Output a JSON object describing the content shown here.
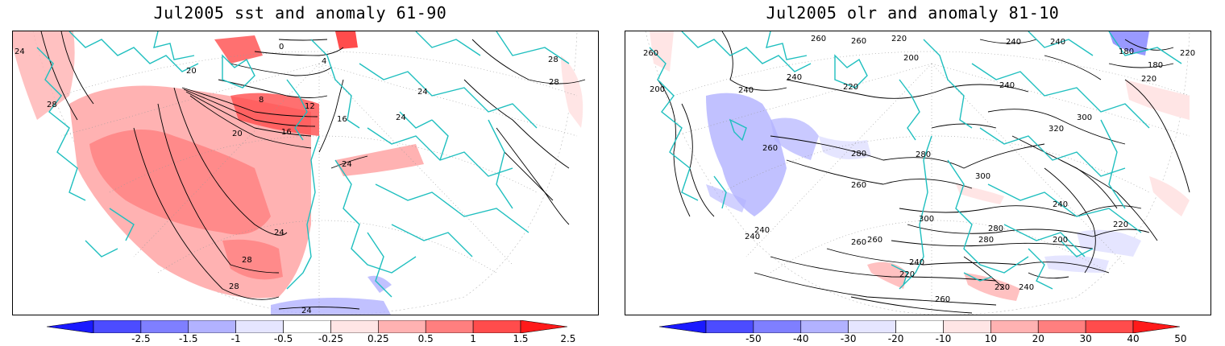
{
  "left_panel": {
    "title": "Jul2005 sst and anomaly 61-90",
    "colorbar": {
      "labels": [
        "-2.5",
        "-1.5",
        "-1",
        "-0.5",
        "-0.25",
        "0.25",
        "0.5",
        "1",
        "1.5",
        "2.5"
      ],
      "colors": [
        "#1a1aff",
        "#4c4cff",
        "#7f7fff",
        "#b2b2ff",
        "#e5e5ff",
        "#ffffff",
        "#ffe5e5",
        "#ffb2b2",
        "#ff7f7f",
        "#ff4c4c",
        "#ff1a1a"
      ]
    },
    "contour_labels": [
      "24",
      "28",
      "20",
      "8",
      "12",
      "16",
      "4",
      "0",
      "24",
      "28",
      "24",
      "16",
      "24",
      "20",
      "28",
      "24",
      "28",
      "24",
      "28"
    ]
  },
  "right_panel": {
    "title": "Jul2005 olr and anomaly 81-10",
    "colorbar": {
      "labels": [
        "-50",
        "-40",
        "-30",
        "-20",
        "-10",
        "10",
        "20",
        "30",
        "40",
        "50"
      ],
      "colors": [
        "#1a1aff",
        "#4c4cff",
        "#7f7fff",
        "#b2b2ff",
        "#e5e5ff",
        "#ffffff",
        "#ffe5e5",
        "#ffb2b2",
        "#ff7f7f",
        "#ff4c4c",
        "#ff1a1a"
      ]
    },
    "contour_labels": [
      "260",
      "260",
      "220",
      "240",
      "240",
      "180",
      "180",
      "220",
      "220",
      "200",
      "240",
      "200",
      "260",
      "240",
      "220",
      "240",
      "260",
      "280",
      "300",
      "320",
      "260",
      "280",
      "300",
      "280",
      "240",
      "220",
      "240",
      "260",
      "300",
      "280",
      "260",
      "240",
      "220",
      "200",
      "220",
      "240",
      "260",
      "240"
    ]
  },
  "colors": {
    "coast": "#1fbfbf",
    "contour": "#000000",
    "grid": "#888888"
  }
}
